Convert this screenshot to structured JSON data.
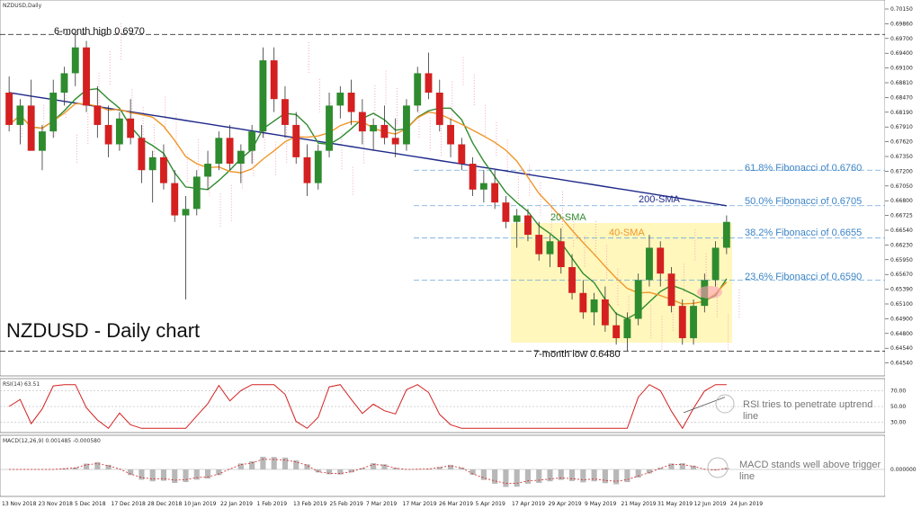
{
  "chart_data": [
    {
      "type": "line",
      "symbol_label": "NZDUSD,Daily",
      "title": "NZDUSD - Daily chart",
      "series": [
        {
          "name": "200-SMA",
          "color": "#1f2a8a"
        },
        {
          "name": "20-SMA",
          "color": "#2e8b2e"
        },
        {
          "name": "40-SMA",
          "color": "#f0962a"
        }
      ],
      "ohlc_approx": [
        [
          0.688,
          0.6905,
          0.682,
          0.683
        ],
        [
          0.683,
          0.687,
          0.68,
          0.686
        ],
        [
          0.686,
          0.69,
          0.684,
          0.679
        ],
        [
          0.679,
          0.683,
          0.676,
          0.682
        ],
        [
          0.682,
          0.69,
          0.681,
          0.688
        ],
        [
          0.688,
          0.692,
          0.686,
          0.691
        ],
        [
          0.691,
          0.697,
          0.689,
          0.695
        ],
        [
          0.695,
          0.696,
          0.685,
          0.686
        ],
        [
          0.686,
          0.689,
          0.681,
          0.683
        ],
        [
          0.683,
          0.686,
          0.678,
          0.68
        ],
        [
          0.68,
          0.685,
          0.679,
          0.684
        ],
        [
          0.684,
          0.687,
          0.68,
          0.681
        ],
        [
          0.681,
          0.683,
          0.674,
          0.676
        ],
        [
          0.676,
          0.679,
          0.671,
          0.678
        ],
        [
          0.678,
          0.68,
          0.673,
          0.674
        ],
        [
          0.674,
          0.676,
          0.668,
          0.669
        ],
        [
          0.669,
          0.672,
          0.656,
          0.67
        ],
        [
          0.67,
          0.676,
          0.669,
          0.675
        ],
        [
          0.675,
          0.679,
          0.673,
          0.677
        ],
        [
          0.677,
          0.682,
          0.676,
          0.681
        ],
        [
          0.681,
          0.683,
          0.676,
          0.677
        ],
        [
          0.677,
          0.68,
          0.674,
          0.679
        ],
        [
          0.679,
          0.683,
          0.677,
          0.682
        ],
        [
          0.682,
          0.695,
          0.681,
          0.693
        ],
        [
          0.693,
          0.695,
          0.685,
          0.687
        ],
        [
          0.687,
          0.689,
          0.681,
          0.683
        ],
        [
          0.683,
          0.685,
          0.677,
          0.678
        ],
        [
          0.678,
          0.68,
          0.672,
          0.674
        ],
        [
          0.674,
          0.68,
          0.673,
          0.679
        ],
        [
          0.679,
          0.688,
          0.678,
          0.686
        ],
        [
          0.686,
          0.689,
          0.684,
          0.688
        ],
        [
          0.688,
          0.69,
          0.683,
          0.685
        ],
        [
          0.685,
          0.687,
          0.68,
          0.682
        ],
        [
          0.682,
          0.684,
          0.679,
          0.683
        ],
        [
          0.683,
          0.686,
          0.68,
          0.681
        ],
        [
          0.681,
          0.684,
          0.678,
          0.68
        ],
        [
          0.68,
          0.687,
          0.679,
          0.686
        ],
        [
          0.686,
          0.692,
          0.685,
          0.691
        ],
        [
          0.691,
          0.6942,
          0.687,
          0.688
        ],
        [
          0.688,
          0.69,
          0.682,
          0.683
        ],
        [
          0.683,
          0.684,
          0.678,
          0.68
        ],
        [
          0.68,
          0.681,
          0.676,
          0.677
        ],
        [
          0.677,
          0.678,
          0.672,
          0.673
        ],
        [
          0.673,
          0.676,
          0.671,
          0.674
        ],
        [
          0.674,
          0.676,
          0.67,
          0.671
        ],
        [
          0.671,
          0.672,
          0.667,
          0.668
        ],
        [
          0.668,
          0.67,
          0.664,
          0.669
        ],
        [
          0.669,
          0.67,
          0.665,
          0.666
        ],
        [
          0.666,
          0.668,
          0.662,
          0.663
        ],
        [
          0.663,
          0.666,
          0.661,
          0.665
        ],
        [
          0.665,
          0.667,
          0.66,
          0.661
        ],
        [
          0.661,
          0.663,
          0.656,
          0.657
        ],
        [
          0.657,
          0.659,
          0.653,
          0.654
        ],
        [
          0.654,
          0.657,
          0.652,
          0.656
        ],
        [
          0.656,
          0.658,
          0.651,
          0.652
        ],
        [
          0.652,
          0.654,
          0.649,
          0.65
        ],
        [
          0.65,
          0.654,
          0.648,
          0.653
        ],
        [
          0.653,
          0.66,
          0.652,
          0.659
        ],
        [
          0.659,
          0.666,
          0.658,
          0.664
        ],
        [
          0.664,
          0.665,
          0.658,
          0.66
        ],
        [
          0.66,
          0.661,
          0.654,
          0.655
        ],
        [
          0.655,
          0.656,
          0.649,
          0.65
        ],
        [
          0.65,
          0.656,
          0.649,
          0.655
        ],
        [
          0.655,
          0.66,
          0.654,
          0.659
        ],
        [
          0.659,
          0.665,
          0.658,
          0.664
        ],
        [
          0.664,
          0.669,
          0.663,
          0.668
        ]
      ],
      "y_axis_ticks": [
        "0.70150",
        "0.69860",
        "0.69700",
        "0.69400",
        "0.69100",
        "0.68810",
        "0.68470",
        "0.68190",
        "0.67910",
        "0.67620",
        "0.67350",
        "0.67200",
        "0.67050",
        "0.66800",
        "0.66725",
        "0.66540",
        "0.66230",
        "0.65950",
        "0.65670",
        "0.65390",
        "0.65100",
        "0.64900",
        "0.64800",
        "0.64540",
        "0.64540"
      ],
      "x_axis_ticks": [
        "13 Nov 2018",
        "23 Nov 2018",
        "5 Dec 2018",
        "17 Dec 2018",
        "28 Dec 2018",
        "10 Jan 2019",
        "22 Jan 2019",
        "1 Feb 2019",
        "13 Feb 2019",
        "25 Feb 2019",
        "7 Mar 2019",
        "17 Mar 2019",
        "26 Mar 2019",
        "5 Apr 2019",
        "17 Apr 2019",
        "29 Apr 2019",
        "9 May 2019",
        "21 May 2019",
        "31 May 2019",
        "12 Jun 2019",
        "24 Jun 2019"
      ],
      "horizontal_levels": [
        {
          "label": "6-month high 0.6970",
          "value": 0.697
        },
        {
          "label": "61.8% Fibonacci of 0.6760",
          "value": 0.676
        },
        {
          "label": "50.0% Fibonacci of 0.6705",
          "value": 0.6705
        },
        {
          "label": "38.2% Fibonacci of 0.6655",
          "value": 0.6655
        },
        {
          "label": "23.6% Fibonacci of 0.6590",
          "value": 0.659
        },
        {
          "label": "7-month low 0.6480",
          "value": 0.648
        }
      ],
      "ylim": [
        0.645,
        0.7015
      ]
    },
    {
      "type": "line",
      "panel_label": "RSI(14) 63.51",
      "annotation": "RSI tries to penetrate uptrend line",
      "y_axis_ticks": [
        "70.00",
        "50.00",
        "30.00"
      ],
      "ylim": [
        20,
        80
      ]
    },
    {
      "type": "bar",
      "panel_label": "MACD(12,26,9) 0.001485 -0.000580",
      "annotation": "MACD stands well above trigger line",
      "y_axis_ticks": [
        "0.000000"
      ]
    }
  ],
  "chart_title": "NZDUSD - Daily chart",
  "sma_labels": {
    "sma200": "200-SMA",
    "sma20": "20-SMA",
    "sma40": "40-SMA"
  },
  "fib_labels": {
    "f618": "61.8% Fibonacci of 0.6760",
    "f500": "50.0% Fibonacci of 0.6705",
    "f382": "38.2% Fibonacci of 0.6655",
    "f236": "23.6% Fibonacci of 0.6590"
  },
  "high_label": "6-month high 0.6970",
  "low_label": "7-month low 0.6480",
  "rsi_note": "RSI tries to penetrate uptrend line",
  "macd_note": "MACD stands well above trigger line",
  "colors": {
    "up": "#2e8b2e",
    "down": "#d42020",
    "sma200": "#1f2a8a",
    "sma20": "#2e8b2e",
    "sma40": "#f0962a",
    "fib": "#6fa8dc",
    "box": "#fff6b0"
  }
}
